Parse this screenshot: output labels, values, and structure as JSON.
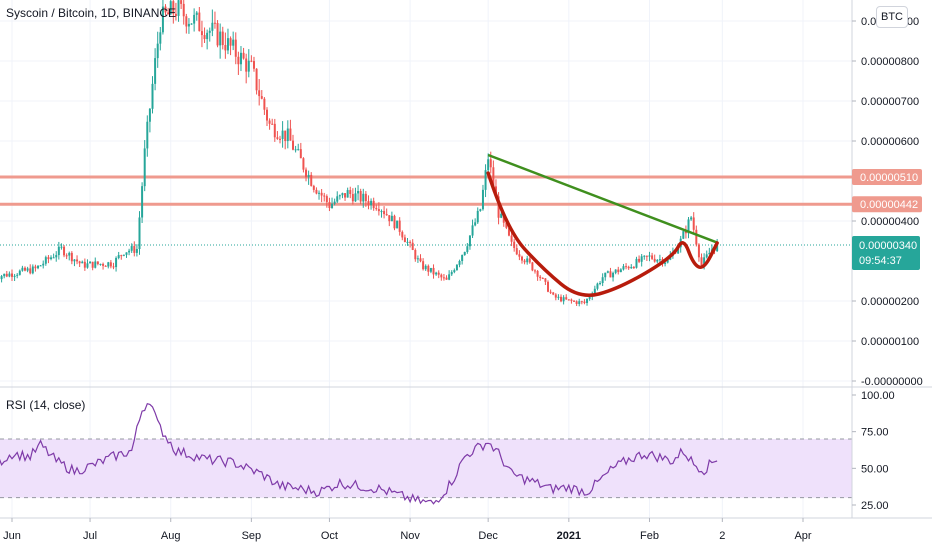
{
  "chart_data": [
    {
      "type": "candlestick",
      "title": "Syscoin / Bitcoin, 1D, BINANCE",
      "currency": "BTC",
      "x_tick_labels": [
        "Jun",
        "Jul",
        "Aug",
        "Sep",
        "Oct",
        "Nov",
        "Dec",
        "2021",
        "Feb",
        "2",
        "Apr"
      ],
      "y_tick_labels": [
        "0.00000900",
        "0.00000800",
        "0.00000700",
        "0.00000600",
        "0.00000400",
        "0.00000200",
        "0.00000100",
        "-0.00000000"
      ],
      "y_ticks": [
        900,
        800,
        700,
        600,
        400,
        200,
        100,
        0
      ],
      "ylim": [
        -2,
        925
      ],
      "price_scale": "1e-8 BTC",
      "grid": true,
      "series": [
        {
          "name": "price",
          "points": [
            [
              "2020-05-25",
              260
            ],
            [
              "2020-06-10",
              280
            ],
            [
              "2020-06-20",
              330
            ],
            [
              "2020-06-28",
              290
            ],
            [
              "2020-07-10",
              295
            ],
            [
              "2020-07-14",
              325
            ],
            [
              "2020-07-19",
              330
            ],
            [
              "2020-07-22",
              570
            ],
            [
              "2020-07-25",
              740
            ],
            [
              "2020-07-28",
              900
            ],
            [
              "2020-08-03",
              930
            ],
            [
              "2020-08-10",
              900
            ],
            [
              "2020-08-20",
              860
            ],
            [
              "2020-09-01",
              780
            ],
            [
              "2020-09-08",
              640
            ],
            [
              "2020-09-15",
              610
            ],
            [
              "2020-09-25",
              490
            ],
            [
              "2020-10-01",
              440
            ],
            [
              "2020-10-08",
              470
            ],
            [
              "2020-10-20",
              440
            ],
            [
              "2020-10-28",
              380
            ],
            [
              "2020-11-05",
              290
            ],
            [
              "2020-11-15",
              250
            ],
            [
              "2020-11-22",
              330
            ],
            [
              "2020-11-28",
              430
            ],
            [
              "2020-12-01",
              560
            ],
            [
              "2020-12-05",
              420
            ],
            [
              "2020-12-10",
              340
            ],
            [
              "2020-12-20",
              270
            ],
            [
              "2020-12-26",
              210
            ],
            [
              "2021-01-01",
              200
            ],
            [
              "2021-01-07",
              195
            ],
            [
              "2021-01-14",
              260
            ],
            [
              "2021-01-25",
              290
            ],
            [
              "2021-02-01",
              310
            ],
            [
              "2021-02-08",
              300
            ],
            [
              "2021-02-13",
              350
            ],
            [
              "2021-02-17",
              410
            ],
            [
              "2021-02-21",
              290
            ],
            [
              "2021-02-25",
              330
            ],
            [
              "2021-02-27",
              340
            ]
          ]
        }
      ],
      "horizontal_lines": [
        {
          "value": 510,
          "label": "0.00000510",
          "color": "#ef9a8e"
        },
        {
          "value": 442,
          "label": "0.00000442",
          "color": "#ef9a8e"
        }
      ],
      "current_price": {
        "value": 340,
        "label": "0.00000340",
        "countdown": "09:54:37",
        "color": "#26a69a"
      },
      "drawings": [
        {
          "kind": "trendline",
          "color": "#3f8f1e",
          "points": [
            [
              "2020-12-01",
              565
            ],
            [
              "2021-02-27",
              346
            ]
          ]
        },
        {
          "kind": "cup-and-handle",
          "color": "#b71c0c",
          "points": [
            [
              "2020-12-01",
              520
            ],
            [
              "2020-12-08",
              380
            ],
            [
              "2020-12-22",
              280
            ],
            [
              "2021-01-05",
              205
            ],
            [
              "2021-01-20",
              230
            ],
            [
              "2021-02-10",
              310
            ],
            [
              "2021-02-14",
              360
            ],
            [
              "2021-02-18",
              290
            ],
            [
              "2021-02-22",
              280
            ],
            [
              "2021-02-27",
              345
            ]
          ]
        }
      ],
      "colors": {
        "up": "#26a69a",
        "down": "#ef5350"
      }
    },
    {
      "type": "line",
      "title": "RSI (14, close)",
      "x_tick_labels": [
        "Jun",
        "Jul",
        "Aug",
        "Sep",
        "Oct",
        "Nov",
        "Dec",
        "2021",
        "Feb",
        "2",
        "Apr"
      ],
      "y_tick_labels": [
        "100.00",
        "75.00",
        "50.00",
        "25.00"
      ],
      "y_ticks": [
        100,
        75,
        50,
        25
      ],
      "ylim": [
        18,
        101
      ],
      "band": [
        30,
        70
      ],
      "band_color": "#efe1fb",
      "line_color": "#7e3aa8",
      "series": [
        {
          "name": "RSI",
          "points": [
            [
              "2020-05-25",
              52
            ],
            [
              "2020-06-01",
              60
            ],
            [
              "2020-06-08",
              58
            ],
            [
              "2020-06-12",
              66
            ],
            [
              "2020-06-18",
              55
            ],
            [
              "2020-06-25",
              48
            ],
            [
              "2020-07-02",
              52
            ],
            [
              "2020-07-10",
              58
            ],
            [
              "2020-07-17",
              62
            ],
            [
              "2020-07-21",
              90
            ],
            [
              "2020-07-24",
              97
            ],
            [
              "2020-07-27",
              80
            ],
            [
              "2020-08-03",
              62
            ],
            [
              "2020-08-15",
              56
            ],
            [
              "2020-08-25",
              54
            ],
            [
              "2020-09-05",
              46
            ],
            [
              "2020-09-12",
              38
            ],
            [
              "2020-09-20",
              36
            ],
            [
              "2020-09-27",
              34
            ],
            [
              "2020-10-05",
              40
            ],
            [
              "2020-10-12",
              38
            ],
            [
              "2020-10-20",
              36
            ],
            [
              "2020-10-27",
              32
            ],
            [
              "2020-11-03",
              28
            ],
            [
              "2020-11-10",
              26
            ],
            [
              "2020-11-15",
              36
            ],
            [
              "2020-11-18",
              44
            ],
            [
              "2020-11-22",
              58
            ],
            [
              "2020-11-25",
              62
            ],
            [
              "2020-12-01",
              68
            ],
            [
              "2020-12-05",
              60
            ],
            [
              "2020-12-10",
              46
            ],
            [
              "2020-12-18",
              41
            ],
            [
              "2020-12-25",
              36
            ],
            [
              "2021-01-01",
              37
            ],
            [
              "2021-01-08",
              34
            ],
            [
              "2021-01-12",
              40
            ],
            [
              "2021-01-18",
              50
            ],
            [
              "2021-01-24",
              56
            ],
            [
              "2021-01-30",
              60
            ],
            [
              "2021-02-04",
              58
            ],
            [
              "2021-02-10",
              55
            ],
            [
              "2021-02-14",
              62
            ],
            [
              "2021-02-18",
              53
            ],
            [
              "2021-02-22",
              49
            ],
            [
              "2021-02-27",
              57
            ]
          ]
        }
      ]
    }
  ]
}
